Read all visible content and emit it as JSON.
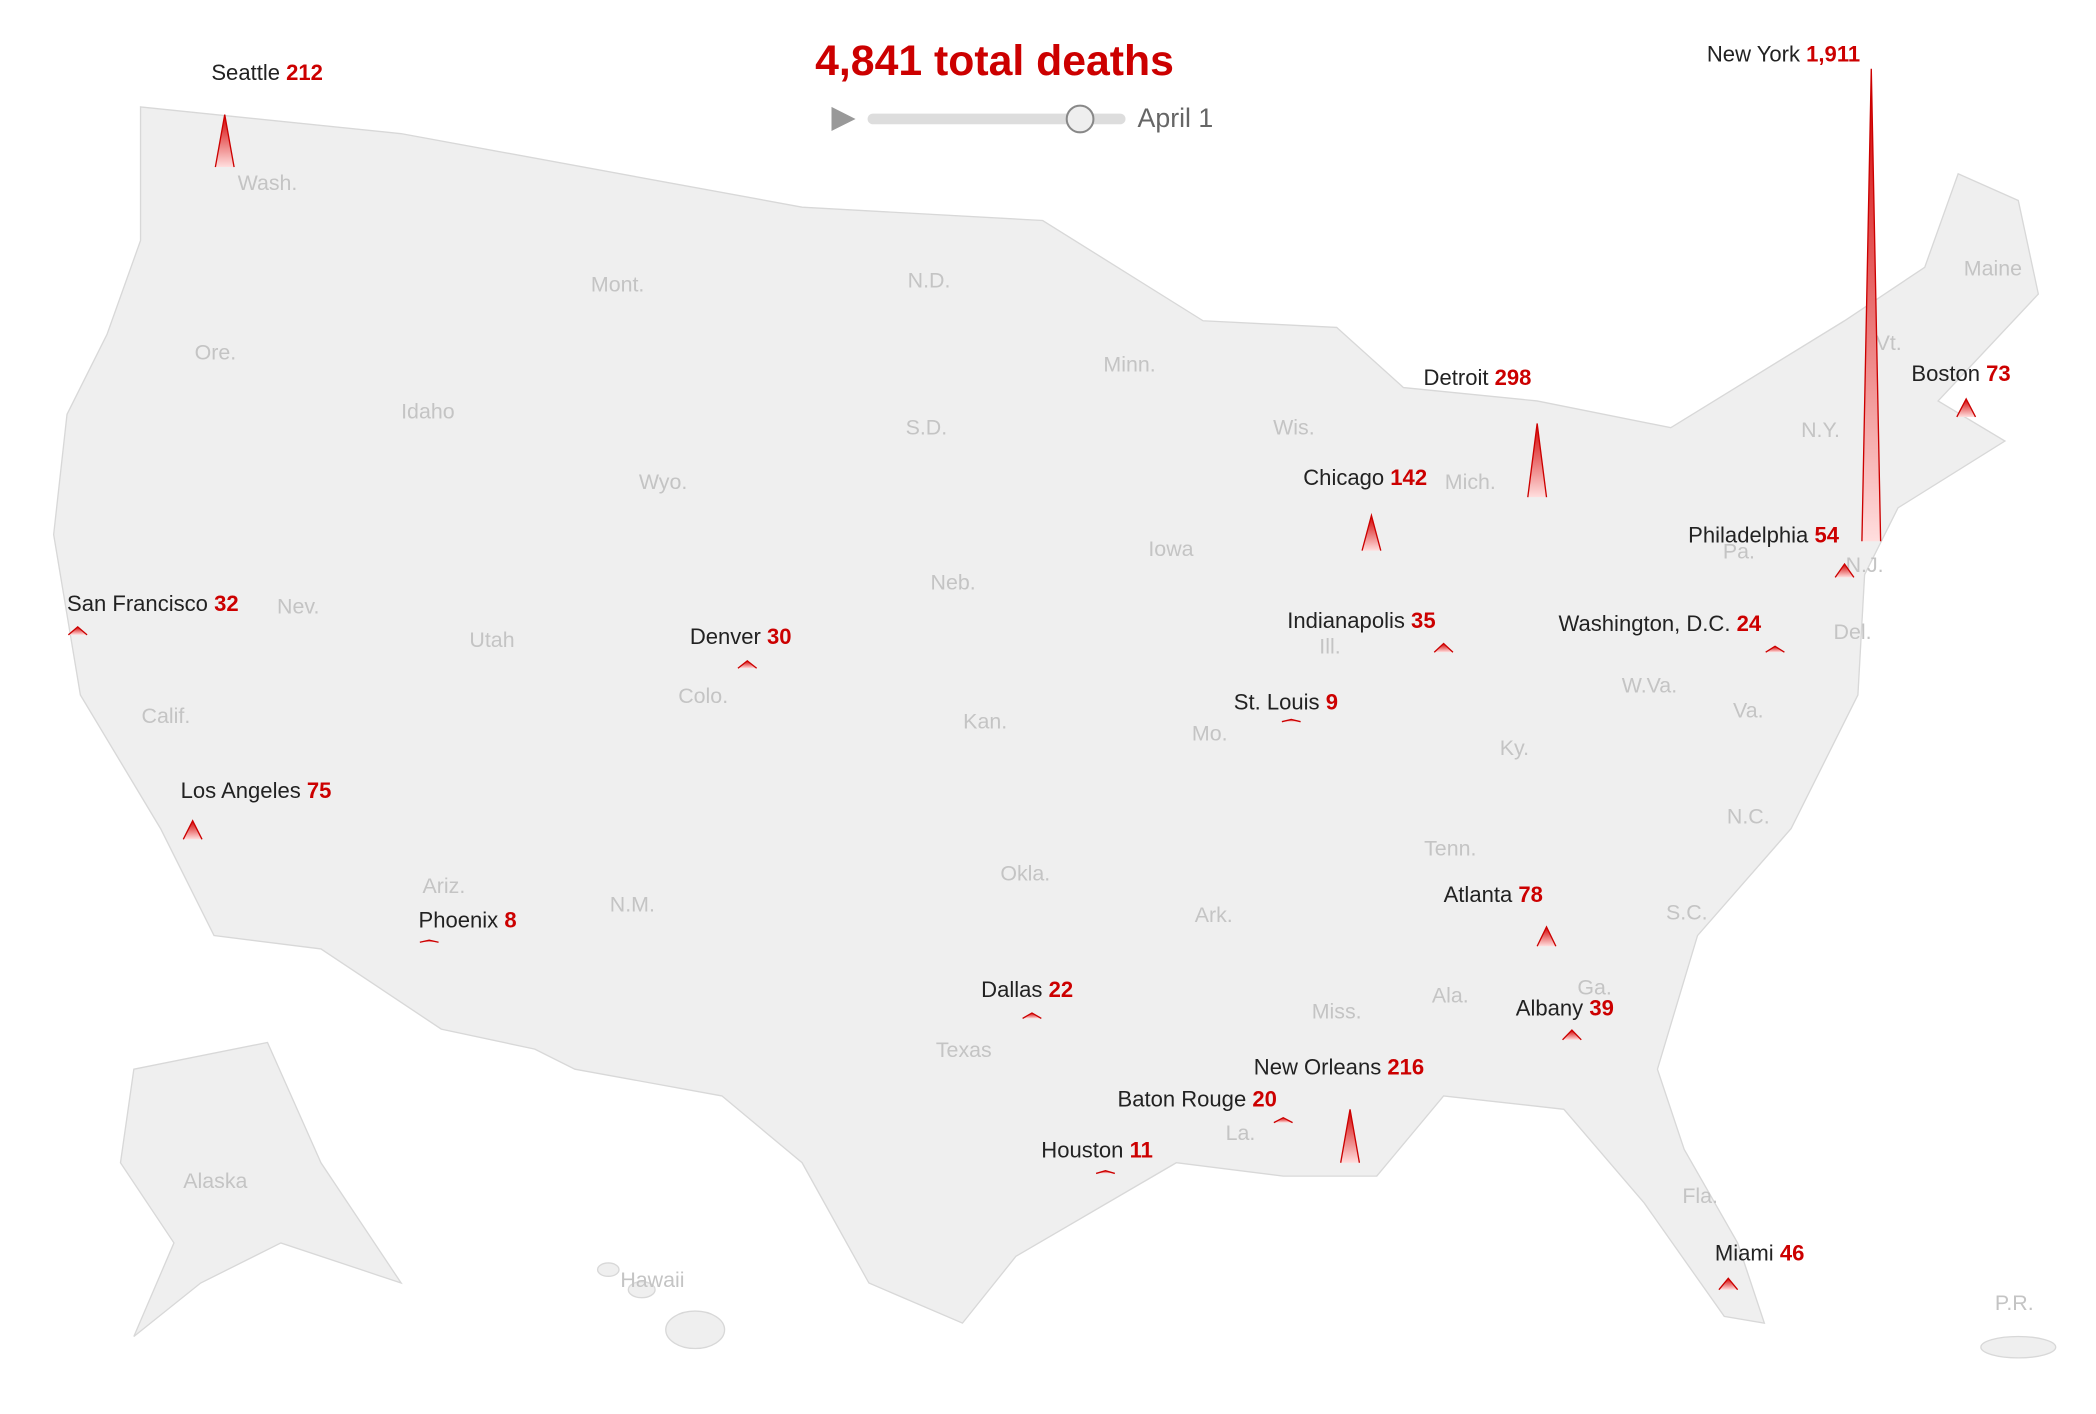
{
  "chart_data": {
    "type": "spike_map",
    "title": "4,841 total deaths",
    "date": "April 1",
    "categories": [
      "Seattle",
      "New York",
      "Boston",
      "Detroit",
      "Chicago",
      "Philadelphia",
      "San Francisco",
      "Denver",
      "Los Angeles",
      "Indianapolis",
      "Washington, D.C.",
      "St. Louis",
      "Atlanta",
      "Phoenix",
      "Dallas",
      "Albany",
      "New Orleans",
      "Baton Rouge",
      "Houston",
      "Miami"
    ],
    "values": [
      212,
      1911,
      73,
      298,
      142,
      54,
      32,
      30,
      75,
      35,
      24,
      9,
      78,
      8,
      22,
      39,
      216,
      20,
      11,
      46
    ],
    "value_labels": [
      "212",
      "1,911",
      "73",
      "298",
      "142",
      "54",
      "32",
      "30",
      "75",
      "35",
      "24",
      "9",
      "78",
      "8",
      "22",
      "39",
      "216",
      "20",
      "11",
      "46"
    ],
    "color": "#c00",
    "state_labels": [
      "Wash.",
      "Ore.",
      "Calif.",
      "Nev.",
      "Idaho",
      "Mont.",
      "Wyo.",
      "Utah",
      "Ariz.",
      "Colo.",
      "N.M.",
      "N.D.",
      "S.D.",
      "Neb.",
      "Kan.",
      "Okla.",
      "Texas",
      "Minn.",
      "Iowa",
      "Mo.",
      "Ark.",
      "La.",
      "Wis.",
      "Ill.",
      "Mich.",
      "Ky.",
      "Tenn.",
      "Miss.",
      "Ala.",
      "Ga.",
      "Fla.",
      "S.C.",
      "N.C.",
      "Va.",
      "W.Va.",
      "Pa.",
      "N.Y.",
      "Maine",
      "Vt.",
      "N.J.",
      "Del.",
      "Alaska",
      "Hawaii",
      "P.R."
    ]
  }
}
